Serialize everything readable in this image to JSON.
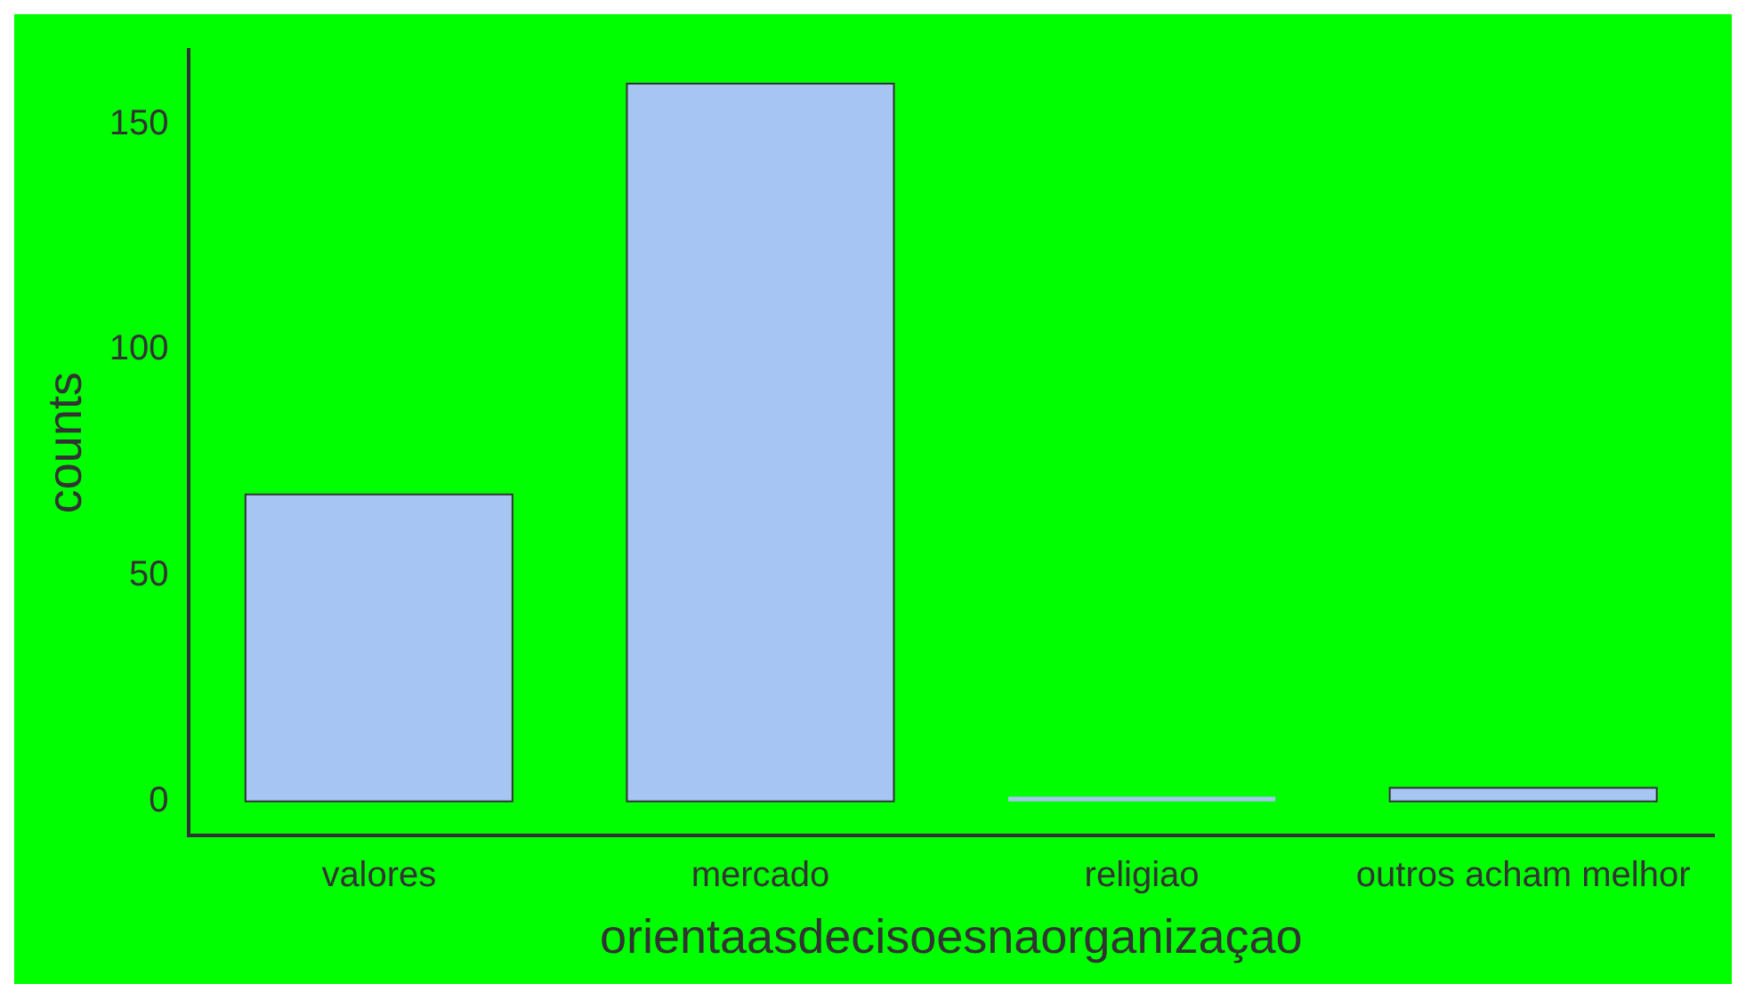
{
  "chart_data": {
    "type": "bar",
    "xlabel": "orientaasdecisoesnaorganizaçao",
    "ylabel": "counts",
    "categories": [
      "valores",
      "mercado",
      "religiao",
      "outros acham melhor"
    ],
    "values": [
      68,
      159,
      1,
      3
    ],
    "color": "#a6c5f2",
    "ylim": [
      -7.6,
      166.5
    ],
    "yticks": [
      0,
      50,
      100,
      150
    ],
    "grid": false,
    "legend": false
  }
}
